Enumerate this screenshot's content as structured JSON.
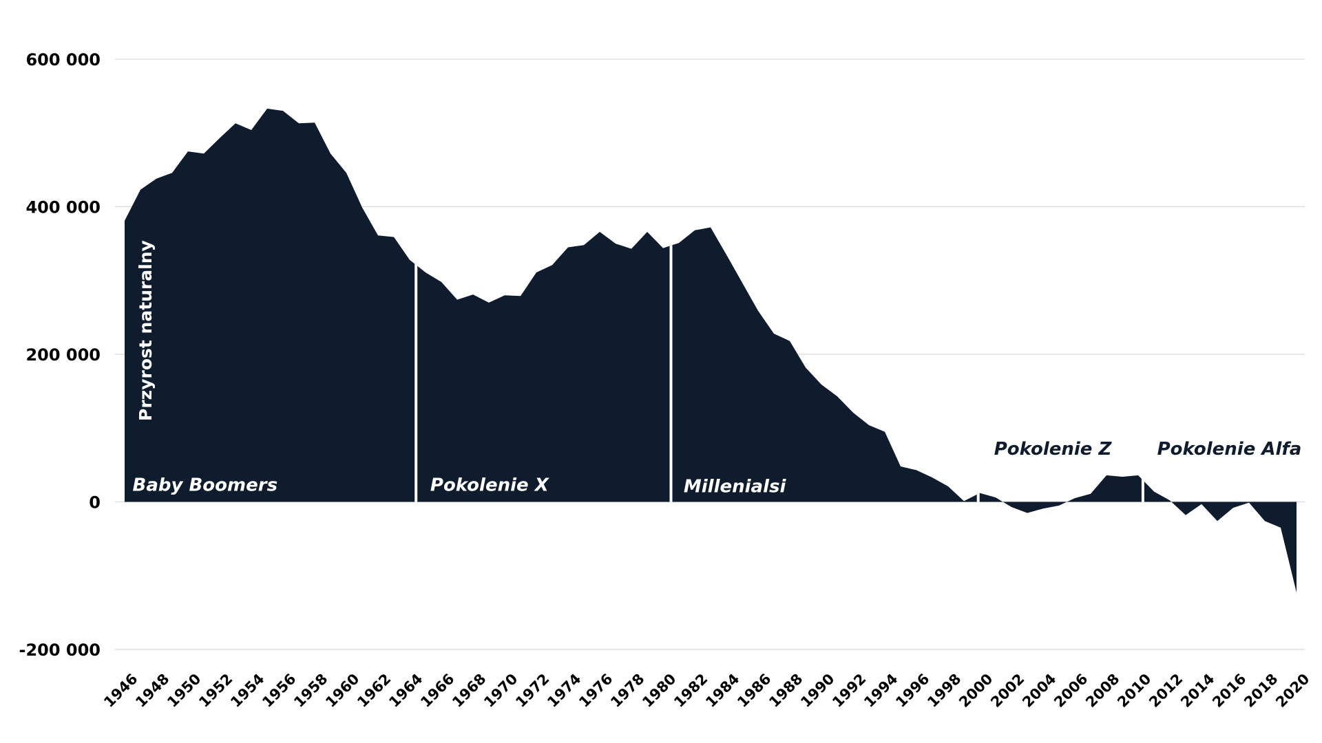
{
  "chart_data": {
    "type": "area",
    "title": "",
    "xlabel": "",
    "ylabel": "Przyrost naturalny",
    "ylim": [
      -200000,
      600000
    ],
    "yticks": [
      600000,
      400000,
      200000,
      0,
      -200000
    ],
    "ytick_labels": [
      "600 000",
      "400 000",
      "200 000",
      "0",
      "-200 000"
    ],
    "grid": true,
    "fill_color": "#0f1c2e",
    "x": [
      1946,
      1947,
      1948,
      1949,
      1950,
      1951,
      1952,
      1953,
      1954,
      1955,
      1956,
      1957,
      1958,
      1959,
      1960,
      1961,
      1962,
      1963,
      1964,
      1965,
      1966,
      1967,
      1968,
      1969,
      1970,
      1971,
      1972,
      1973,
      1974,
      1975,
      1976,
      1977,
      1978,
      1979,
      1980,
      1981,
      1982,
      1983,
      1984,
      1985,
      1986,
      1987,
      1988,
      1989,
      1990,
      1991,
      1992,
      1993,
      1994,
      1995,
      1996,
      1997,
      1998,
      1999,
      2000,
      2001,
      2002,
      2003,
      2004,
      2005,
      2006,
      2007,
      2008,
      2009,
      2010,
      2011,
      2012,
      2013,
      2014,
      2015,
      2016,
      2017,
      2018,
      2019,
      2020
    ],
    "values": [
      381000,
      423000,
      438000,
      446000,
      475000,
      472000,
      493000,
      513000,
      504000,
      533000,
      530000,
      513000,
      514000,
      472000,
      446000,
      399000,
      361000,
      359000,
      328000,
      311000,
      298000,
      274000,
      281000,
      270000,
      280000,
      279000,
      311000,
      321000,
      345000,
      348000,
      366000,
      350000,
      343000,
      366000,
      344000,
      351000,
      368000,
      372000,
      335000,
      297000,
      259000,
      228000,
      218000,
      182000,
      159000,
      143000,
      121000,
      104000,
      95000,
      48000,
      43000,
      33000,
      21000,
      1000,
      12000,
      6000,
      -7000,
      -15000,
      -9000,
      -5000,
      5000,
      11000,
      36000,
      34000,
      36000,
      14000,
      2000,
      -18000,
      -3000,
      -26000,
      -8000,
      -1000,
      -26000,
      -35000,
      -123000
    ],
    "xtick_labels": [
      "1946",
      "1948",
      "1950",
      "1952",
      "1954",
      "1956",
      "1958",
      "1960",
      "1962",
      "1964",
      "1966",
      "1968",
      "1970",
      "1972",
      "1974",
      "1976",
      "1978",
      "1980",
      "1982",
      "1984",
      "1986",
      "1988",
      "1990",
      "1992",
      "1994",
      "1996",
      "1998",
      "2000",
      "2002",
      "2004",
      "2006",
      "2008",
      "2010",
      "2012",
      "2014",
      "2016",
      "2018",
      "2020"
    ],
    "annotations": [
      {
        "text": "Baby Boomers",
        "x": 1946.5,
        "y": 15000,
        "color": "#ffffff"
      },
      {
        "text": "Pokolenie X",
        "x": 1965.3,
        "y": 15000,
        "color": "#ffffff"
      },
      {
        "text": "Millenialsi",
        "x": 1981.3,
        "y": 13000,
        "color": "#ffffff"
      },
      {
        "text": "Pokolenie Z",
        "x": 2000.9,
        "y": 64000,
        "color": "#0f1c2e"
      },
      {
        "text": "Pokolenie Alfa",
        "x": 2011.2,
        "y": 64000,
        "color": "#0f1c2e"
      }
    ],
    "separators": [
      1964.4,
      1980.5,
      1999.9,
      2010.3
    ]
  }
}
